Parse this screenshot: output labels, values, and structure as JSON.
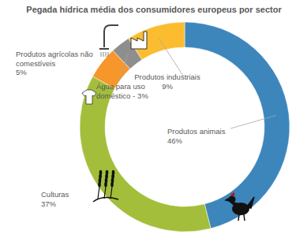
{
  "chart_data": {
    "type": "donut",
    "title": "Pegada hídrica média dos consumidores europeus por sector",
    "categories": [
      "Produtos animais",
      "Culturas",
      "Produtos agrícolas não comestíveis",
      "Água para uso doméstico -",
      "Produtos industriais"
    ],
    "values": [
      46,
      37,
      5,
      3,
      9
    ],
    "value_labels": [
      "46%",
      "37%",
      "5%",
      "3%",
      "9%"
    ],
    "colors": [
      "#3d86bc",
      "#a3be3a",
      "#f7962a",
      "#8e8e8e",
      "#fbbd2f"
    ],
    "data_labels": true
  }
}
